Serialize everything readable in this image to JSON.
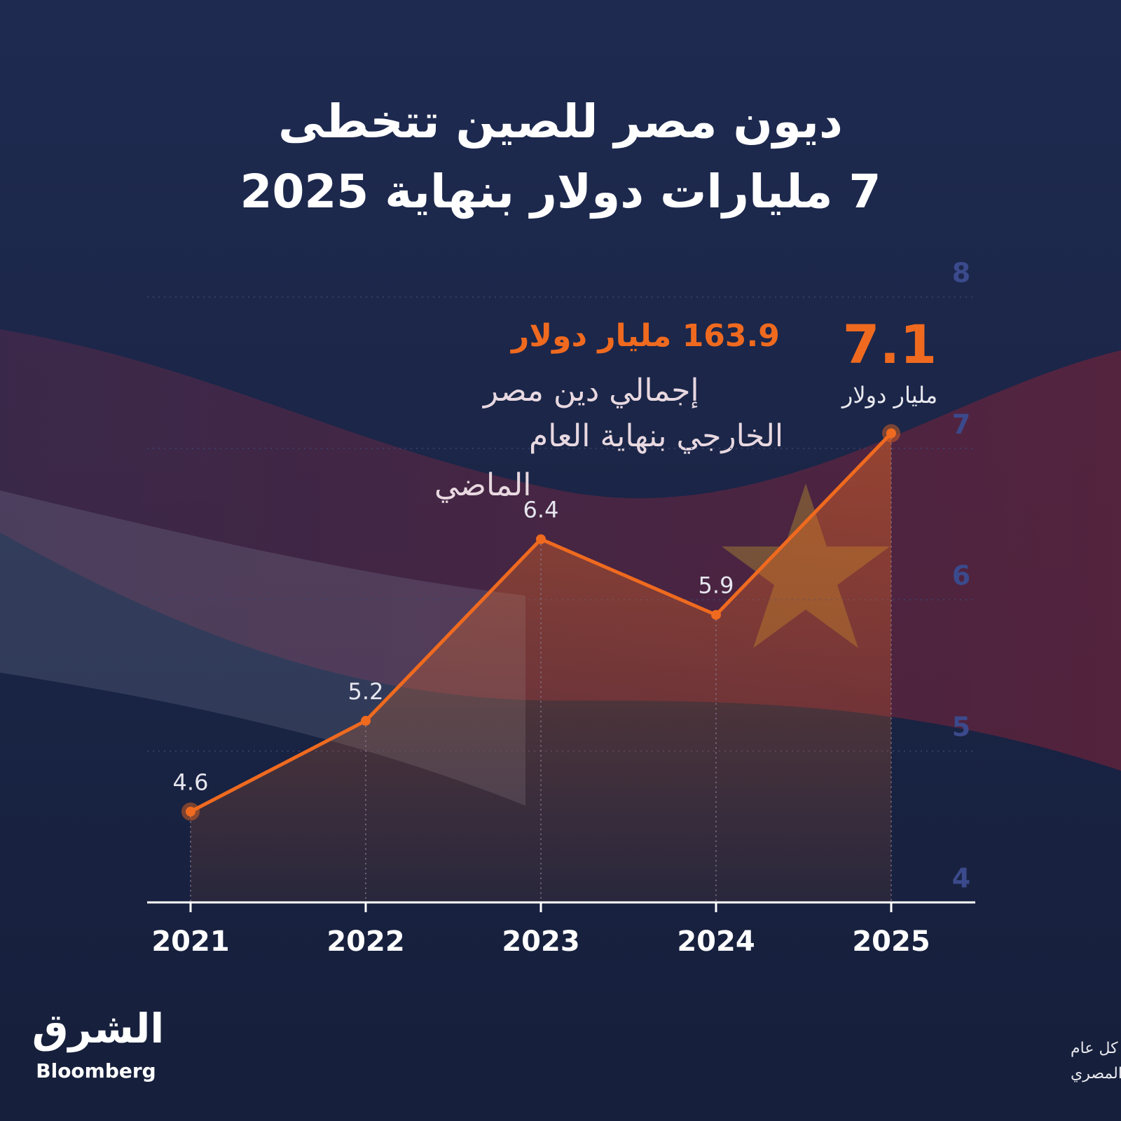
{
  "chart_data": {
    "type": "line",
    "title": [
      "ديون مصر للصين تتخطى",
      "7 مليارات دولار بنهاية 2025"
    ],
    "categories": [
      "2021",
      "2022",
      "2023",
      "2024",
      "2025"
    ],
    "values": [
      4.6,
      5.2,
      6.4,
      5.9,
      7.1
    ],
    "color": "#ef6a1f",
    "ylim": [
      4,
      8
    ],
    "yticks": [
      4,
      5,
      6,
      7,
      8
    ],
    "grid": true,
    "callout_unit": "مليار دولار",
    "annotation": {
      "value": "163.9 مليار دولار",
      "text": [
        "إجمالي دين مصر",
        "الخارجي بنهاية العام",
        "الماضي"
      ]
    },
    "note": "ملاحظة: البيانات بنهاية ديسمبر من كل عام",
    "source": "المصدر: بيانات البنك المركزي المصري"
  },
  "brand": {
    "arabic": "الشرق",
    "english": "Bloomberg"
  }
}
